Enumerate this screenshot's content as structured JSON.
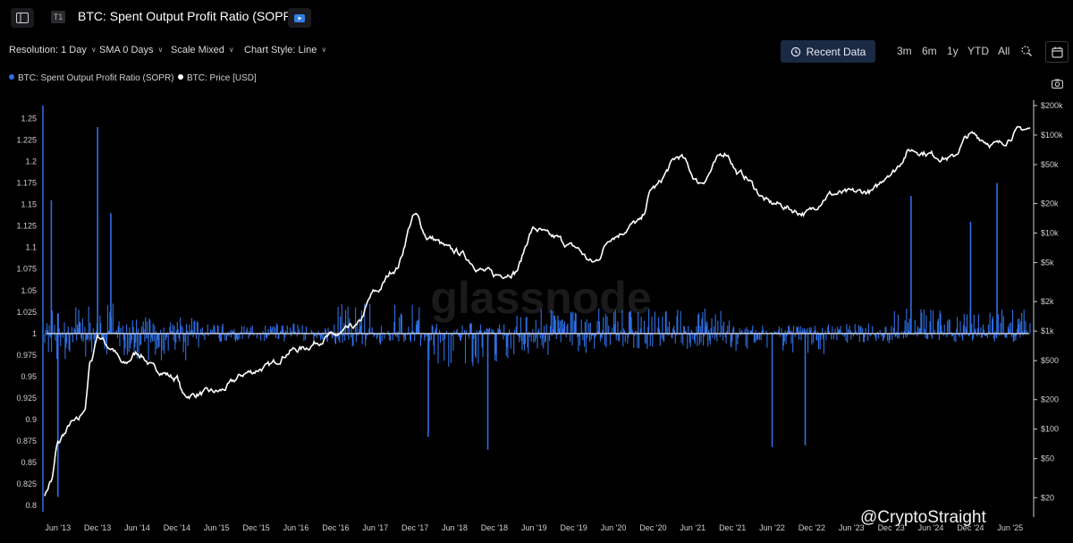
{
  "header": {
    "title": "BTC: Spent Output Profit Ratio (SOPR)",
    "tier_tag": "T1"
  },
  "controls": {
    "resolution": "Resolution: 1 Day",
    "sma": "SMA 0 Days",
    "scale": "Scale Mixed",
    "chart_style": "Chart Style: Line",
    "recent_data": "Recent Data",
    "ranges": [
      "3m",
      "6m",
      "1y",
      "YTD",
      "All"
    ]
  },
  "legend": [
    {
      "label": "BTC: Spent Output Profit Ratio (SOPR)",
      "color": "#2f6fe4"
    },
    {
      "label": "BTC: Price [USD]",
      "color": "#ffffff"
    }
  ],
  "watermark": "glassnode",
  "credit": "@CryptoStraight",
  "colors": {
    "sopr": "#2f6fe4",
    "price": "#ffffff",
    "baseline": "#e6e6e6",
    "button": "#1b2a44"
  },
  "chart_data": {
    "type": "line",
    "title": "BTC: Spent Output Profit Ratio (SOPR)",
    "x_tick_labels": [
      "Jun '13",
      "Dec '13",
      "Jun '14",
      "Dec '14",
      "Jun '15",
      "Dec '15",
      "Jun '16",
      "Dec '16",
      "Jun '17",
      "Dec '17",
      "Jun '18",
      "Dec '18",
      "Jun '19",
      "Dec '19",
      "Jun '20",
      "Dec '20",
      "Jun '21",
      "Dec '21",
      "Jun '22",
      "Dec '22",
      "Jun '23",
      "Dec '23",
      "Jun '24",
      "Dec '24",
      "Jun '25"
    ],
    "x_range": [
      "2013-04",
      "2025-09"
    ],
    "y_left": {
      "label": "SOPR",
      "ticks": [
        0.8,
        0.825,
        0.85,
        0.875,
        0.9,
        0.925,
        0.95,
        0.975,
        1,
        1.025,
        1.05,
        1.075,
        1.1,
        1.125,
        1.15,
        1.175,
        1.2,
        1.225,
        1.25
      ],
      "range": [
        0.795,
        1.265
      ],
      "scale": "linear"
    },
    "y_right": {
      "label": "Price [USD]",
      "ticks": [
        20,
        50,
        100,
        200,
        500,
        1000,
        2000,
        5000,
        10000,
        20000,
        50000,
        100000,
        200000
      ],
      "tick_labels": [
        "$20",
        "$50",
        "$100",
        "$200",
        "$500",
        "$1k",
        "$2k",
        "$5k",
        "$10k",
        "$20k",
        "$50k",
        "$100k",
        "$200k"
      ],
      "range": [
        15,
        200000
      ],
      "scale": "log"
    },
    "baseline": 1,
    "series": [
      {
        "name": "BTC: Spent Output Profit Ratio (SOPR)",
        "axis": "left",
        "notable_spikes": [
          {
            "date": "2013-05",
            "value": 1.155
          },
          {
            "date": "2013-06",
            "value": 0.81
          },
          {
            "date": "2013-12",
            "value": 1.24
          },
          {
            "date": "2014-02",
            "value": 1.14
          },
          {
            "date": "2018-02",
            "value": 0.88
          },
          {
            "date": "2018-11",
            "value": 0.865
          },
          {
            "date": "2022-06",
            "value": 0.868
          },
          {
            "date": "2022-11",
            "value": 0.87
          },
          {
            "date": "2024-03",
            "value": 1.16
          },
          {
            "date": "2024-12",
            "value": 1.13
          },
          {
            "date": "2025-04",
            "value": 1.175
          }
        ]
      },
      {
        "name": "BTC: Price [USD]",
        "axis": "right",
        "points": [
          {
            "date": "2013-04",
            "value": 22
          },
          {
            "date": "2013-05",
            "value": 30
          },
          {
            "date": "2013-06",
            "value": 70
          },
          {
            "date": "2013-07",
            "value": 90
          },
          {
            "date": "2013-08",
            "value": 115
          },
          {
            "date": "2013-09",
            "value": 120
          },
          {
            "date": "2013-10",
            "value": 160
          },
          {
            "date": "2013-11",
            "value": 500
          },
          {
            "date": "2013-12",
            "value": 900
          },
          {
            "date": "2014-02",
            "value": 680
          },
          {
            "date": "2014-04",
            "value": 450
          },
          {
            "date": "2014-06",
            "value": 600
          },
          {
            "date": "2014-09",
            "value": 400
          },
          {
            "date": "2014-12",
            "value": 330
          },
          {
            "date": "2015-01",
            "value": 220
          },
          {
            "date": "2015-06",
            "value": 240
          },
          {
            "date": "2015-11",
            "value": 380
          },
          {
            "date": "2016-01",
            "value": 420
          },
          {
            "date": "2016-06",
            "value": 650
          },
          {
            "date": "2016-12",
            "value": 900
          },
          {
            "date": "2017-03",
            "value": 1100
          },
          {
            "date": "2017-06",
            "value": 2500
          },
          {
            "date": "2017-09",
            "value": 4300
          },
          {
            "date": "2017-12",
            "value": 15000
          },
          {
            "date": "2018-02",
            "value": 9000
          },
          {
            "date": "2018-06",
            "value": 6500
          },
          {
            "date": "2018-11",
            "value": 4000
          },
          {
            "date": "2018-12",
            "value": 3700
          },
          {
            "date": "2019-03",
            "value": 4000
          },
          {
            "date": "2019-06",
            "value": 11000
          },
          {
            "date": "2019-09",
            "value": 9000
          },
          {
            "date": "2019-12",
            "value": 7200
          },
          {
            "date": "2020-03",
            "value": 5000
          },
          {
            "date": "2020-06",
            "value": 9500
          },
          {
            "date": "2020-10",
            "value": 13000
          },
          {
            "date": "2020-12",
            "value": 29000
          },
          {
            "date": "2021-04",
            "value": 60000
          },
          {
            "date": "2021-07",
            "value": 33000
          },
          {
            "date": "2021-11",
            "value": 66000
          },
          {
            "date": "2022-01",
            "value": 40000
          },
          {
            "date": "2022-06",
            "value": 20000
          },
          {
            "date": "2022-11",
            "value": 16000
          },
          {
            "date": "2023-03",
            "value": 25000
          },
          {
            "date": "2023-09",
            "value": 26500
          },
          {
            "date": "2023-12",
            "value": 42000
          },
          {
            "date": "2024-03",
            "value": 70000
          },
          {
            "date": "2024-09",
            "value": 58000
          },
          {
            "date": "2024-12",
            "value": 100000
          },
          {
            "date": "2025-04",
            "value": 80000
          },
          {
            "date": "2025-08",
            "value": 115000
          }
        ]
      }
    ],
    "grid": false,
    "legend_position": "top-left"
  }
}
